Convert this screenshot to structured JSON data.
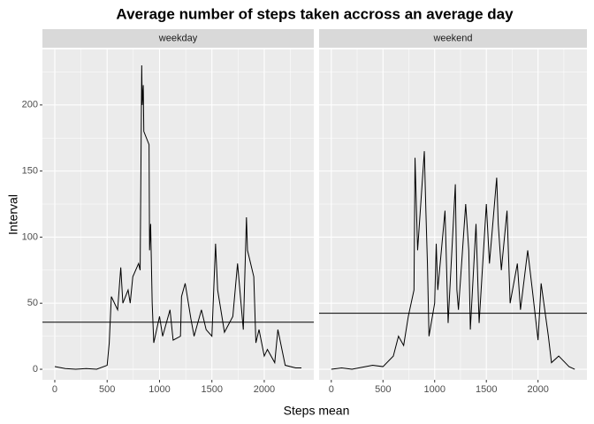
{
  "chart_data": {
    "type": "line",
    "title": "Average number of steps taken accross an average day",
    "xlabel": "Steps mean",
    "ylabel": "Interval",
    "xlim": [
      -118,
      2473
    ],
    "ylim": [
      -8,
      242
    ],
    "xticks": [
      0,
      500,
      1000,
      1500,
      2000
    ],
    "yticks": [
      0,
      50,
      100,
      150,
      200
    ],
    "grid": true,
    "color": "#000000",
    "panels": [
      {
        "name": "weekday",
        "hline": 35.6,
        "x": [
          0,
          100,
          200,
          300,
          400,
          500,
          520,
          540,
          600,
          630,
          650,
          700,
          720,
          745,
          800,
          815,
          830,
          835,
          845,
          850,
          900,
          905,
          915,
          930,
          945,
          1000,
          1030,
          1100,
          1130,
          1200,
          1210,
          1245,
          1300,
          1330,
          1400,
          1445,
          1500,
          1535,
          1555,
          1620,
          1700,
          1745,
          1800,
          1830,
          1840,
          1900,
          1920,
          1950,
          2000,
          2030,
          2100,
          2130,
          2200,
          2300,
          2355
        ],
        "values": [
          2,
          0.5,
          0,
          0.5,
          0,
          3,
          20,
          55,
          45,
          77,
          50,
          60,
          50,
          70,
          80,
          75,
          230,
          200,
          215,
          180,
          170,
          90,
          110,
          50,
          20,
          40,
          25,
          45,
          22,
          25,
          55,
          65,
          38,
          25,
          45,
          30,
          25,
          95,
          60,
          28,
          40,
          80,
          30,
          115,
          90,
          70,
          20,
          30,
          10,
          15,
          5,
          30,
          3,
          1,
          1
        ]
      },
      {
        "name": "weekend",
        "hline": 42.4,
        "x": [
          0,
          100,
          200,
          400,
          500,
          600,
          650,
          700,
          745,
          800,
          810,
          835,
          900,
          915,
          930,
          945,
          1000,
          1015,
          1030,
          1100,
          1130,
          1200,
          1215,
          1230,
          1300,
          1330,
          1345,
          1400,
          1430,
          1500,
          1530,
          1600,
          1615,
          1645,
          1700,
          1730,
          1800,
          1830,
          1900,
          1945,
          2000,
          2030,
          2100,
          2130,
          2200,
          2300,
          2355
        ],
        "values": [
          0,
          1,
          0,
          3,
          2,
          10,
          25,
          18,
          40,
          60,
          160,
          90,
          165,
          120,
          80,
          25,
          50,
          95,
          60,
          120,
          35,
          140,
          60,
          45,
          125,
          90,
          30,
          110,
          35,
          125,
          80,
          145,
          110,
          75,
          120,
          50,
          80,
          45,
          90,
          60,
          22,
          65,
          25,
          5,
          10,
          2,
          0
        ]
      }
    ]
  }
}
